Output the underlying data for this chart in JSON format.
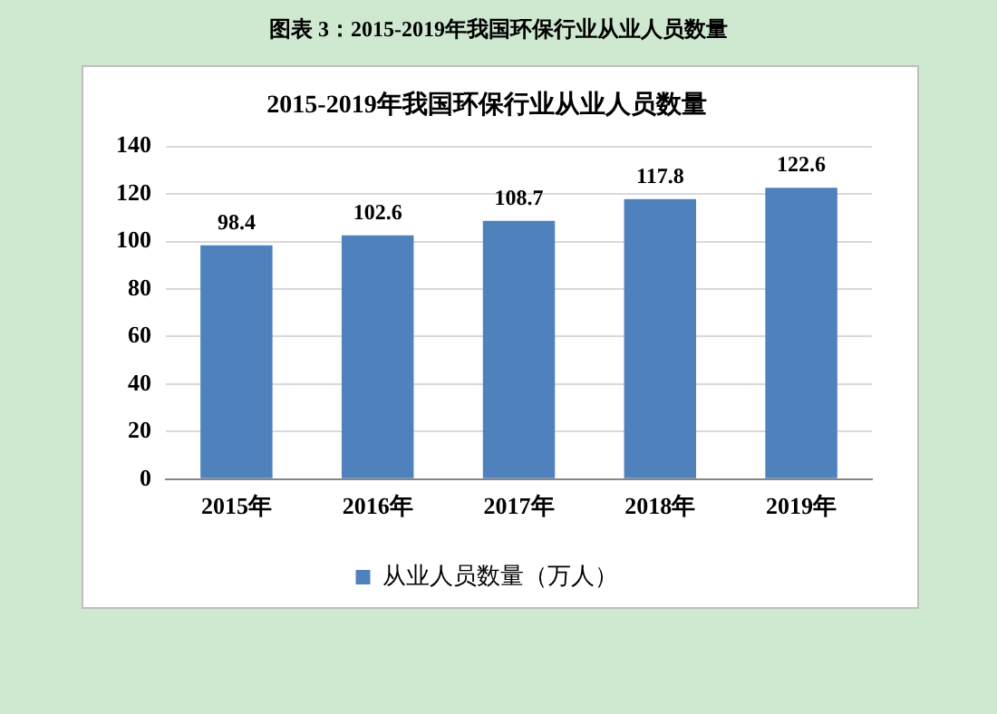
{
  "chart_data": {
    "type": "bar",
    "title": "2015-2019年我国环保行业从业人员数量",
    "annotations": [
      "图表 3：2015-2019年我国环保行业从业人员数量"
    ],
    "categories": [
      "2015年",
      "2016年",
      "2017年",
      "2018年",
      "2019年"
    ],
    "series": [
      {
        "name": "从业人员数量（万人）",
        "color": "#4f81bd",
        "values": [
          98.4,
          102.6,
          108.7,
          117.8,
          122.6
        ]
      }
    ],
    "ylim": [
      0,
      140
    ],
    "yticks": [
      0,
      20,
      40,
      60,
      80,
      100,
      120,
      140
    ],
    "grid": "y",
    "legend": "bottom",
    "data_labels": true
  }
}
